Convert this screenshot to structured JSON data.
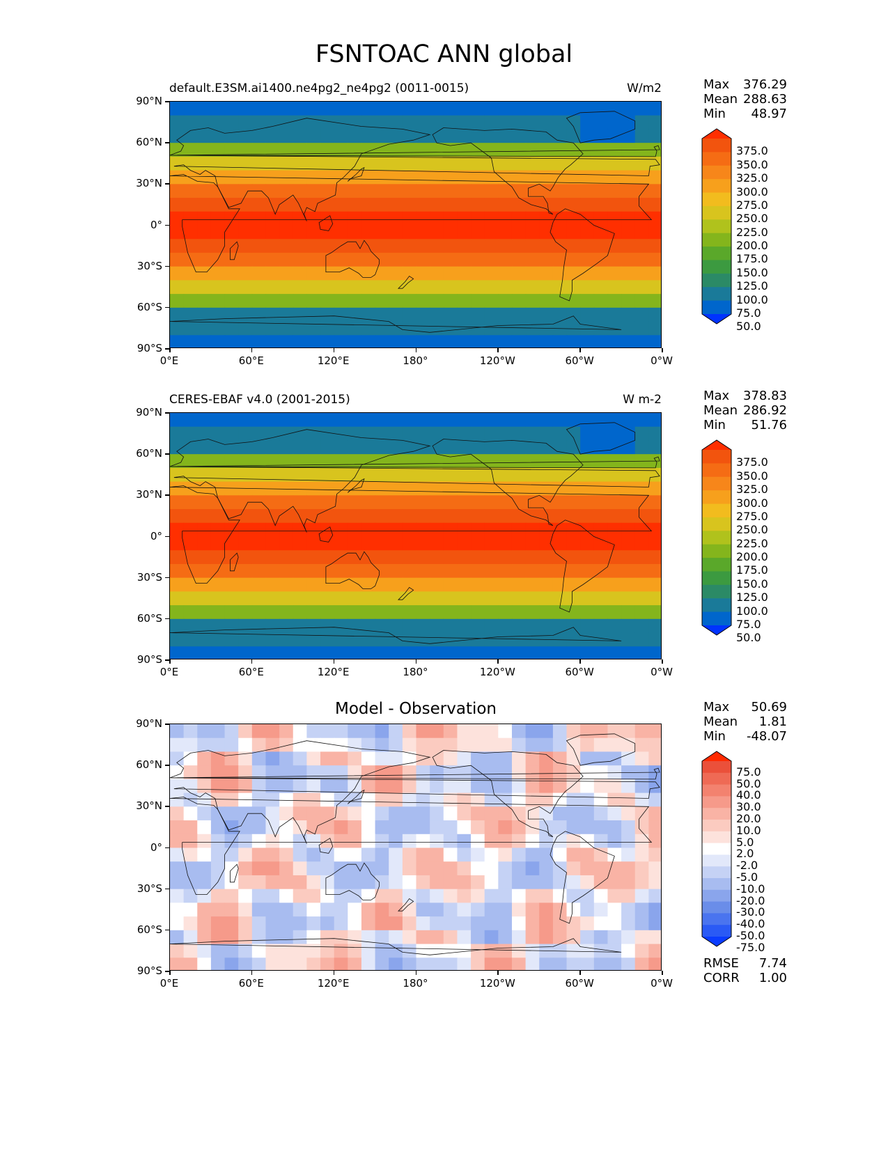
{
  "title": "FSNTOAC ANN global",
  "lat_ticks": [
    "90°N",
    "60°N",
    "30°N",
    "0°",
    "30°S",
    "60°S",
    "90°S"
  ],
  "lon_ticks": [
    "0°E",
    "60°E",
    "120°E",
    "180°",
    "120°W",
    "60°W",
    "0°W"
  ],
  "panels": [
    {
      "id": "model",
      "left_title": "default.E3SM.ai1400.ne4pg2_ne4pg2 (0011-0015)",
      "center_title": "",
      "units": "W/m2",
      "stats": [
        {
          "label": "Max",
          "value": "376.29"
        },
        {
          "label": "Mean",
          "value": "288.63"
        },
        {
          "label": "Min",
          "value": "48.97"
        }
      ],
      "colorbar_ticks": [
        "375.0",
        "350.0",
        "325.0",
        "300.0",
        "275.0",
        "250.0",
        "225.0",
        "200.0",
        "175.0",
        "150.0",
        "125.0",
        "100.0",
        "75.0",
        "50.0"
      ],
      "colorbar_colors": [
        "#0033ff",
        "#0066cc",
        "#1a7a99",
        "#2b8a66",
        "#3c9a40",
        "#5aa82a",
        "#84b51c",
        "#b0c21c",
        "#d8c41e",
        "#f2bc1e",
        "#f7a01c",
        "#f7861a",
        "#f56c14",
        "#f2540e",
        "#ff2f00"
      ]
    },
    {
      "id": "obs",
      "left_title": "CERES-EBAF v4.0 (2001-2015)",
      "center_title": "",
      "units": "W m-2",
      "stats": [
        {
          "label": "Max",
          "value": "378.83"
        },
        {
          "label": "Mean",
          "value": "286.92"
        },
        {
          "label": "Min",
          "value": "51.76"
        }
      ],
      "colorbar_ticks": [
        "375.0",
        "350.0",
        "325.0",
        "300.0",
        "275.0",
        "250.0",
        "225.0",
        "200.0",
        "175.0",
        "150.0",
        "125.0",
        "100.0",
        "75.0",
        "50.0"
      ],
      "colorbar_colors": [
        "#0033ff",
        "#0066cc",
        "#1a7a99",
        "#2b8a66",
        "#3c9a40",
        "#5aa82a",
        "#84b51c",
        "#b0c21c",
        "#d8c41e",
        "#f2bc1e",
        "#f7a01c",
        "#f7861a",
        "#f56c14",
        "#f2540e",
        "#ff2f00"
      ]
    },
    {
      "id": "diff",
      "left_title": "",
      "center_title": "Model - Observation",
      "units": "",
      "stats": [
        {
          "label": "Max",
          "value": "50.69"
        },
        {
          "label": "Mean",
          "value": "1.81"
        },
        {
          "label": "Min",
          "value": "-48.07"
        }
      ],
      "colorbar_ticks": [
        "75.0",
        "50.0",
        "40.0",
        "30.0",
        "20.0",
        "10.0",
        "5.0",
        "2.0",
        "-2.0",
        "-5.0",
        "-10.0",
        "-20.0",
        "-30.0",
        "-40.0",
        "-50.0",
        "-75.0"
      ],
      "colorbar_colors": [
        "#0a3cff",
        "#2a5af5",
        "#4a74ef",
        "#6a8de9",
        "#8aa5ec",
        "#a8bcf0",
        "#c5d2f5",
        "#e2e8fa",
        "#ffffff",
        "#fde2dc",
        "#fbcbc0",
        "#f9b3a5",
        "#f69a8a",
        "#f3826f",
        "#ef6a55",
        "#eb503a",
        "#ff2a00"
      ],
      "extra_stats": [
        {
          "label": "RMSE",
          "value": "7.74"
        },
        {
          "label": "CORR",
          "value": "1.00"
        }
      ]
    }
  ]
}
